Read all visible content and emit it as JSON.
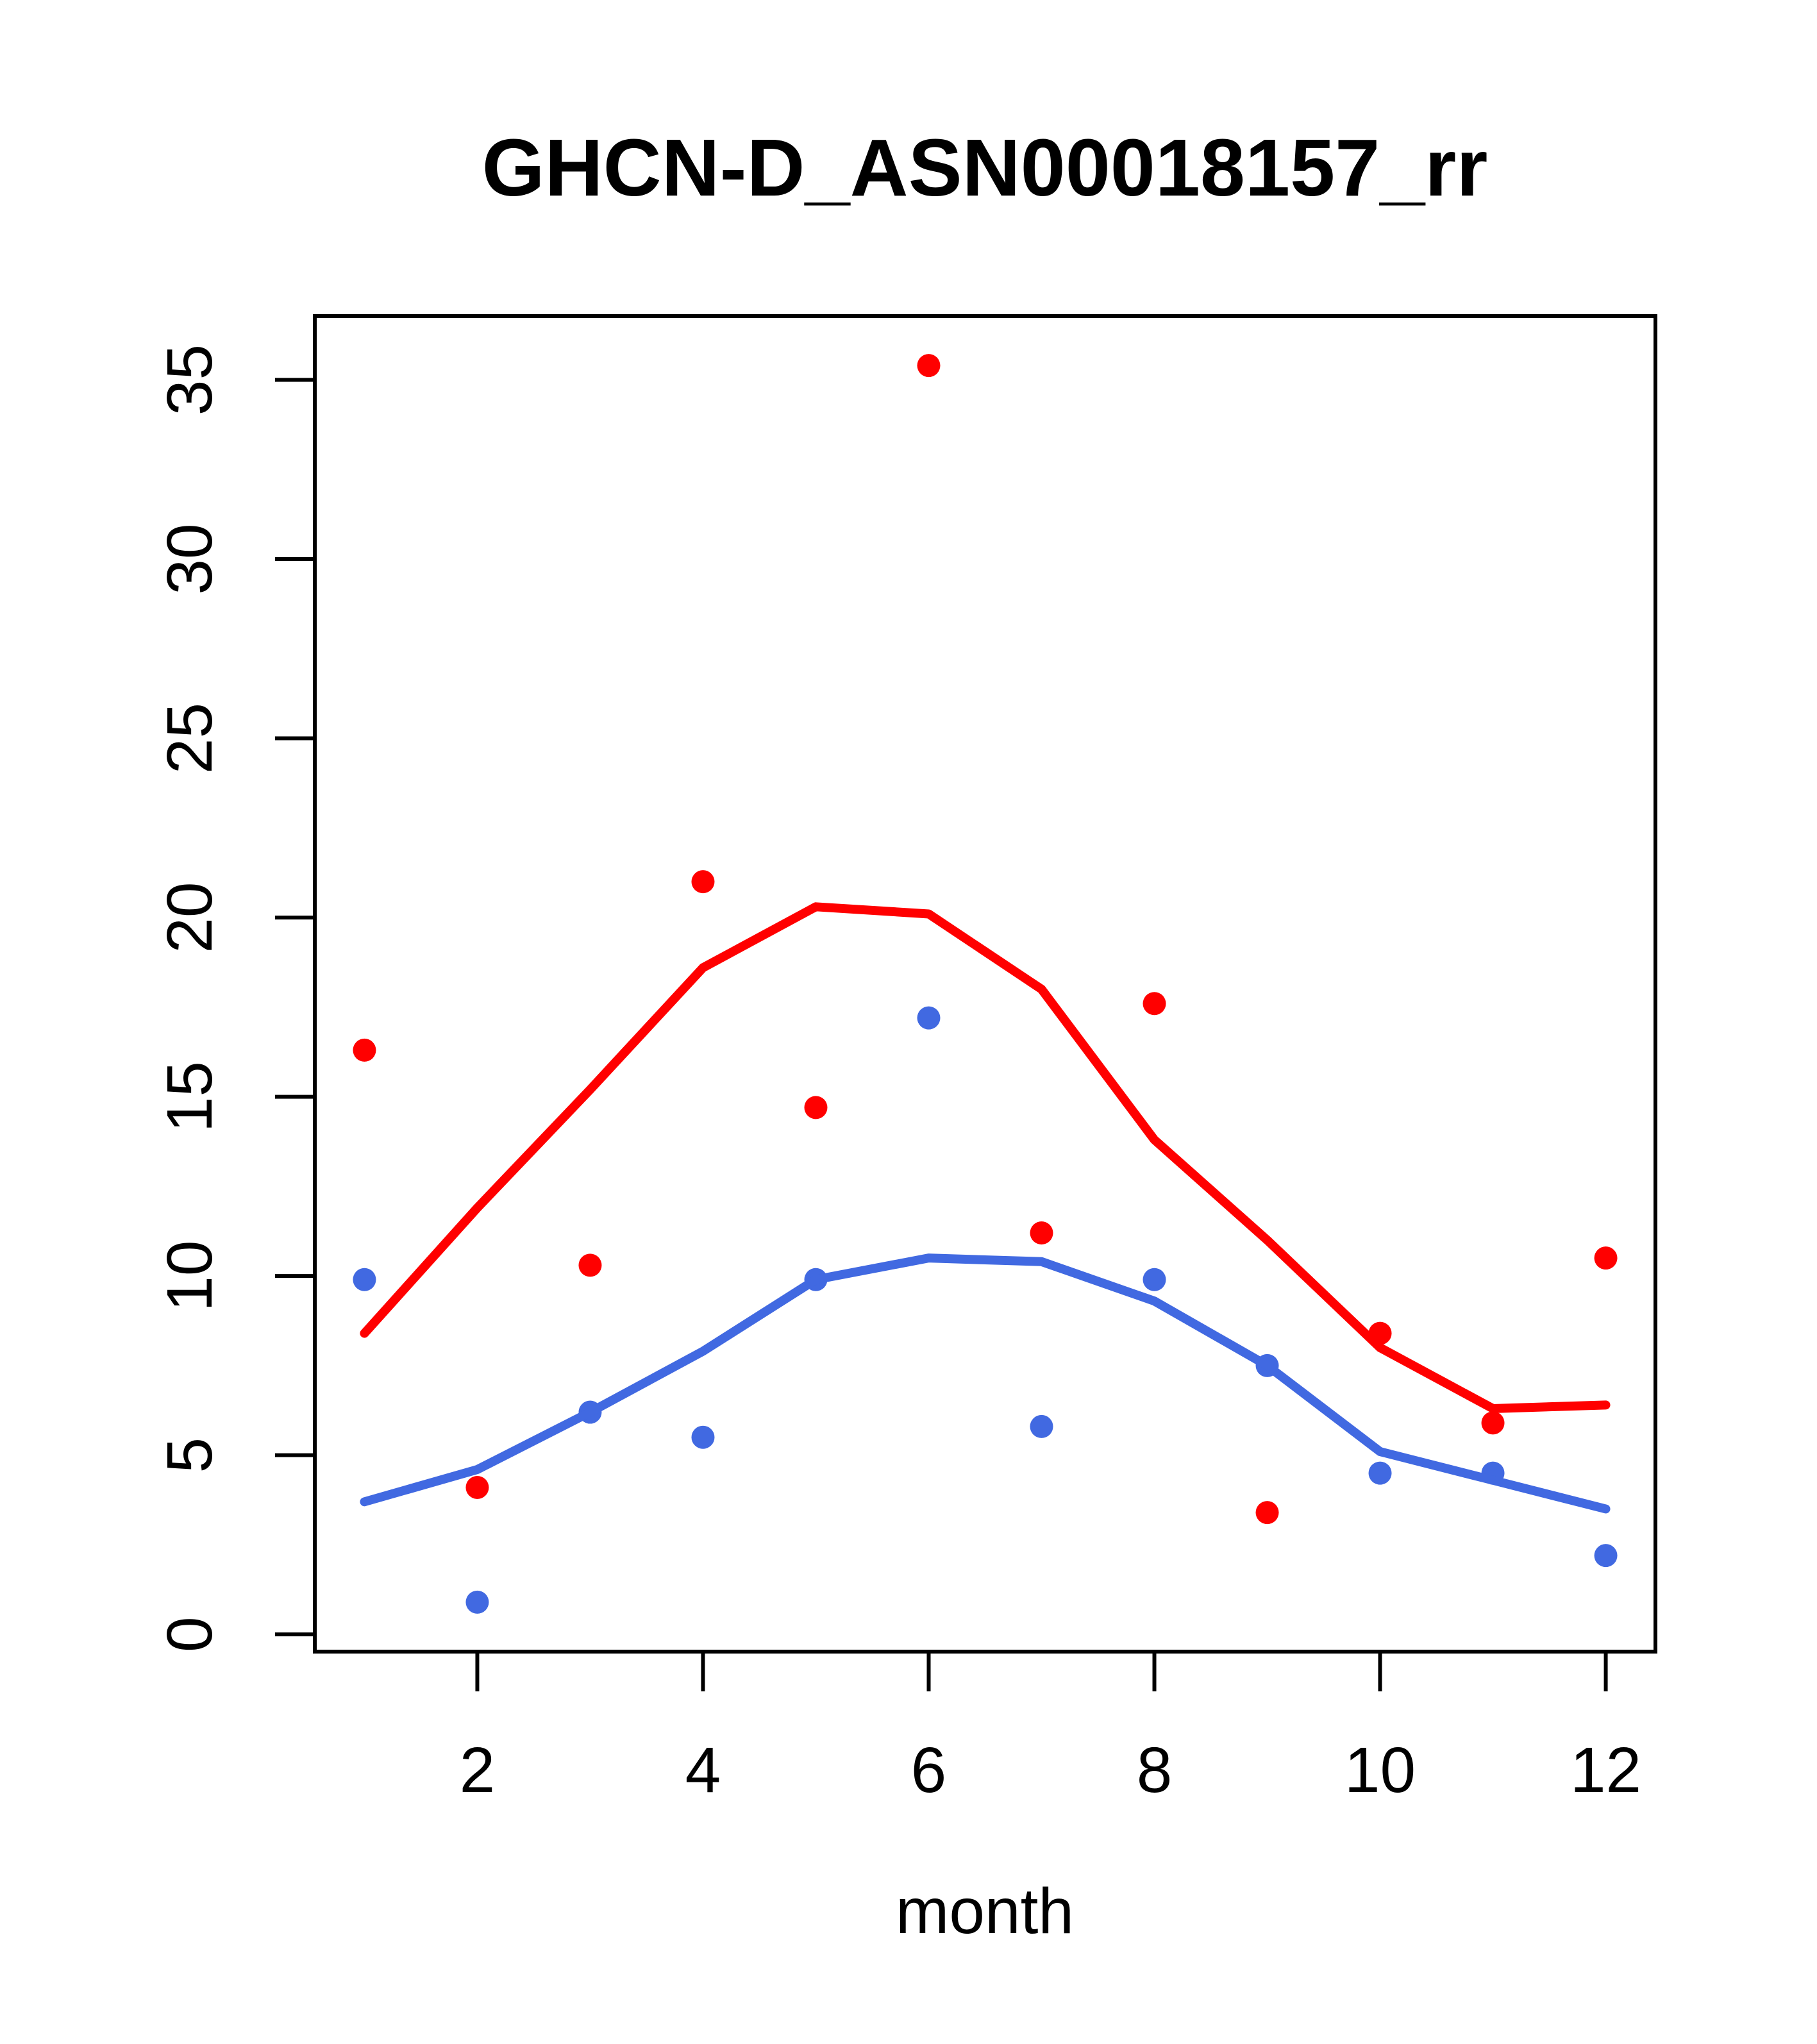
{
  "title": "GHCN-D_ASN00018157_rr",
  "colors": {
    "red_series": "#FF0000",
    "blue_series": "#4169E1",
    "axis": "#000000",
    "background": "#FFFFFF"
  },
  "chart_data": {
    "type": "scatter",
    "title": "GHCN-D_ASN00018157_rr",
    "xlabel": "month",
    "ylabel": "",
    "x": [
      1,
      2,
      3,
      4,
      5,
      6,
      7,
      8,
      9,
      10,
      11,
      12
    ],
    "x_ticks": [
      2,
      4,
      6,
      8,
      10,
      12
    ],
    "y_ticks": [
      0,
      5,
      10,
      15,
      20,
      25,
      30,
      35
    ],
    "xlim": [
      0.56,
      12.44
    ],
    "ylim": [
      -0.48,
      36.78
    ],
    "grid": "off",
    "legend": "none",
    "series": [
      {
        "name": "red-points",
        "kind": "scatter",
        "color": "#FF0000",
        "values": [
          16.3,
          4.1,
          10.3,
          21.0,
          14.7,
          35.4,
          11.2,
          17.6,
          3.4,
          8.4,
          5.9,
          10.5
        ]
      },
      {
        "name": "blue-points",
        "kind": "scatter",
        "color": "#4169E1",
        "values": [
          9.9,
          0.9,
          6.2,
          5.5,
          9.9,
          17.2,
          5.8,
          9.9,
          7.5,
          4.5,
          4.5,
          2.2
        ]
      },
      {
        "name": "red-lowess-line",
        "kind": "line",
        "color": "#FF0000",
        "values": [
          8.4,
          11.9,
          15.2,
          18.6,
          20.3,
          20.1,
          18.0,
          13.8,
          11.0,
          8.0,
          6.3,
          6.4
        ]
      },
      {
        "name": "blue-lowess-line",
        "kind": "line",
        "color": "#4169E1",
        "values": [
          3.7,
          4.6,
          6.2,
          7.9,
          9.9,
          10.5,
          10.4,
          9.3,
          7.5,
          5.1,
          4.3,
          3.5
        ]
      }
    ]
  }
}
